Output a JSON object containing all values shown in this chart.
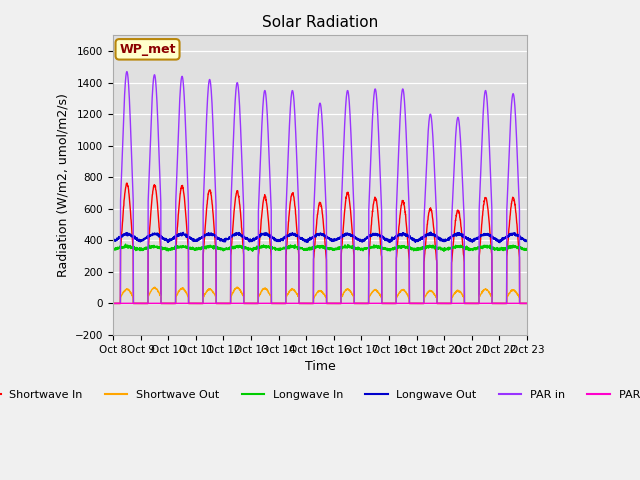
{
  "title": "Solar Radiation",
  "xlabel": "Time",
  "ylabel": "Radiation (W/m2, umol/m2/s)",
  "ylim": [
    -200,
    1700
  ],
  "yticks": [
    -200,
    0,
    200,
    400,
    600,
    800,
    1000,
    1200,
    1400,
    1600
  ],
  "label_station": "WP_met",
  "background_color": "#e0e0e0",
  "fig_background": "#f0f0f0",
  "series": {
    "shortwave_in": {
      "label": "Shortwave In",
      "color": "#ff0000"
    },
    "shortwave_out": {
      "label": "Shortwave Out",
      "color": "#ffa500"
    },
    "longwave_in": {
      "label": "Longwave In",
      "color": "#00cc00"
    },
    "longwave_out": {
      "label": "Longwave Out",
      "color": "#0000cc"
    },
    "par_in": {
      "label": "PAR in",
      "color": "#9933ff"
    },
    "par_out": {
      "label": "PAR out",
      "color": "#ff00cc"
    }
  },
  "xtick_labels": [
    "Oct 8",
    "Oct 9",
    "Oct 10",
    "Oct 11",
    "Oct 12",
    "Oct 13",
    "Oct 14",
    "Oct 15",
    "Oct 16",
    "Oct 17",
    "Oct 18",
    "Oct 19",
    "Oct 20",
    "Oct 21",
    "Oct 22",
    "Oct 23"
  ],
  "n_days": 15,
  "points_per_day": 144,
  "par_in_peaks": [
    1470,
    1450,
    1440,
    1420,
    1400,
    1350,
    1350,
    1270,
    1350,
    1360,
    1360,
    1200,
    1180,
    1350,
    1330
  ],
  "sw_in_peaks": [
    760,
    750,
    745,
    720,
    710,
    680,
    700,
    640,
    700,
    670,
    650,
    600,
    590,
    670,
    670
  ],
  "sw_out_peaks": [
    90,
    100,
    95,
    90,
    100,
    95,
    90,
    80,
    90,
    85,
    85,
    80,
    80,
    90,
    85
  ],
  "lw_base_in": 340,
  "lw_base_out": 390
}
